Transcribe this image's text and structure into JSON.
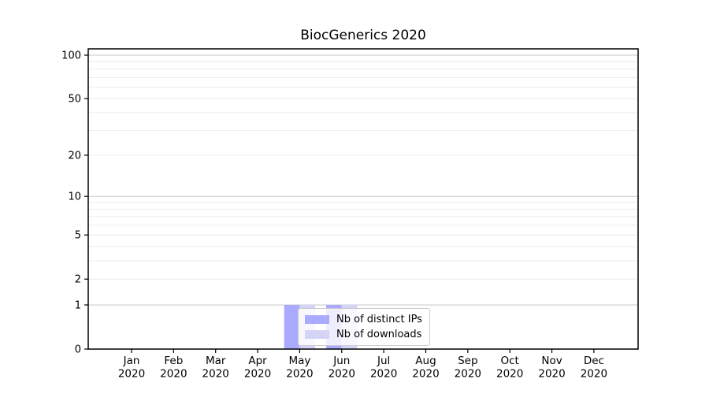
{
  "chart_data": {
    "type": "bar",
    "title": "BiocGenerics 2020",
    "xlabel": "",
    "ylabel": "",
    "scale": "log1p",
    "ylim": [
      0,
      111
    ],
    "grid": true,
    "categories": [
      "Jan",
      "Feb",
      "Mar",
      "Apr",
      "May",
      "Jun",
      "Jul",
      "Aug",
      "Sep",
      "Oct",
      "Nov",
      "Dec"
    ],
    "year": "2020",
    "series": [
      {
        "name": "Nb of distinct IPs",
        "color": "#aaaaff",
        "values": [
          0,
          0,
          0,
          0,
          1,
          1,
          0,
          0,
          0,
          0,
          0,
          0
        ]
      },
      {
        "name": "Nb of downloads",
        "color": "#d4d4f6",
        "values": [
          0,
          0,
          0,
          0,
          1,
          1,
          0,
          0,
          0,
          0,
          0,
          0
        ]
      }
    ],
    "yticks": [
      100,
      50,
      20,
      10,
      5,
      2,
      1,
      0
    ],
    "gridlines": [
      1,
      2,
      3,
      4,
      5,
      6,
      7,
      8,
      9,
      10,
      20,
      30,
      40,
      50,
      60,
      70,
      80,
      90,
      100
    ],
    "major_gridlines": [
      1,
      10,
      100
    ],
    "legend_position": "bottom-center-overlay",
    "colors": {
      "axis": "#000000",
      "minor_gridline": "#ececec",
      "major_gridline": "#c9c9c9",
      "legend_border": "#cccccc"
    }
  }
}
